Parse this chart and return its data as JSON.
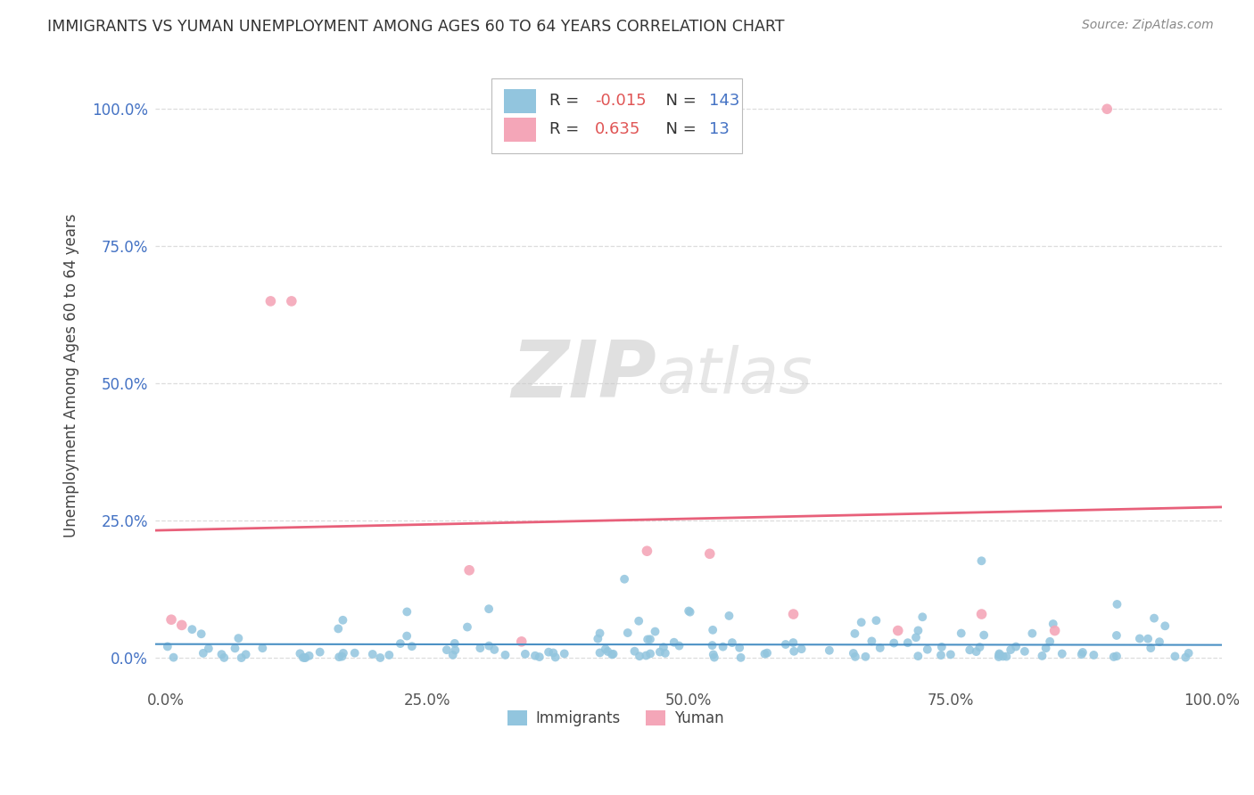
{
  "title": "IMMIGRANTS VS YUMAN UNEMPLOYMENT AMONG AGES 60 TO 64 YEARS CORRELATION CHART",
  "source": "Source: ZipAtlas.com",
  "ylabel": "Unemployment Among Ages 60 to 64 years",
  "xlim": [
    -1,
    101
  ],
  "ylim": [
    -5,
    108
  ],
  "xticks": [
    0,
    25,
    50,
    75,
    100
  ],
  "yticks": [
    0,
    25,
    50,
    75,
    100
  ],
  "xticklabels": [
    "0.0%",
    "25.0%",
    "50.0%",
    "75.0%",
    "100.0%"
  ],
  "yticklabels": [
    "0.0%",
    "25.0%",
    "50.0%",
    "75.0%",
    "100.0%"
  ],
  "immigrants_color": "#92c5de",
  "yuman_color": "#f4a6b8",
  "immigrants_R": -0.015,
  "immigrants_N": 143,
  "yuman_R": 0.635,
  "yuman_N": 13,
  "watermark_zip": "ZIP",
  "watermark_atlas": "atlas",
  "immigrants_line_color": "#4a90c4",
  "yuman_line_color": "#e8607a",
  "r_color": "#e05555",
  "n_color": "#4472c4",
  "grid_color": "#dddddd",
  "yuman_x": [
    0.5,
    1.5,
    10.0,
    12.0,
    29.0,
    34.0,
    46.0,
    52.0,
    60.0,
    70.0,
    78.0,
    85.0,
    90.0
  ],
  "yuman_y": [
    7.0,
    6.0,
    65.0,
    65.0,
    16.0,
    3.0,
    19.5,
    19.0,
    8.0,
    5.0,
    8.0,
    5.0,
    100.0
  ]
}
